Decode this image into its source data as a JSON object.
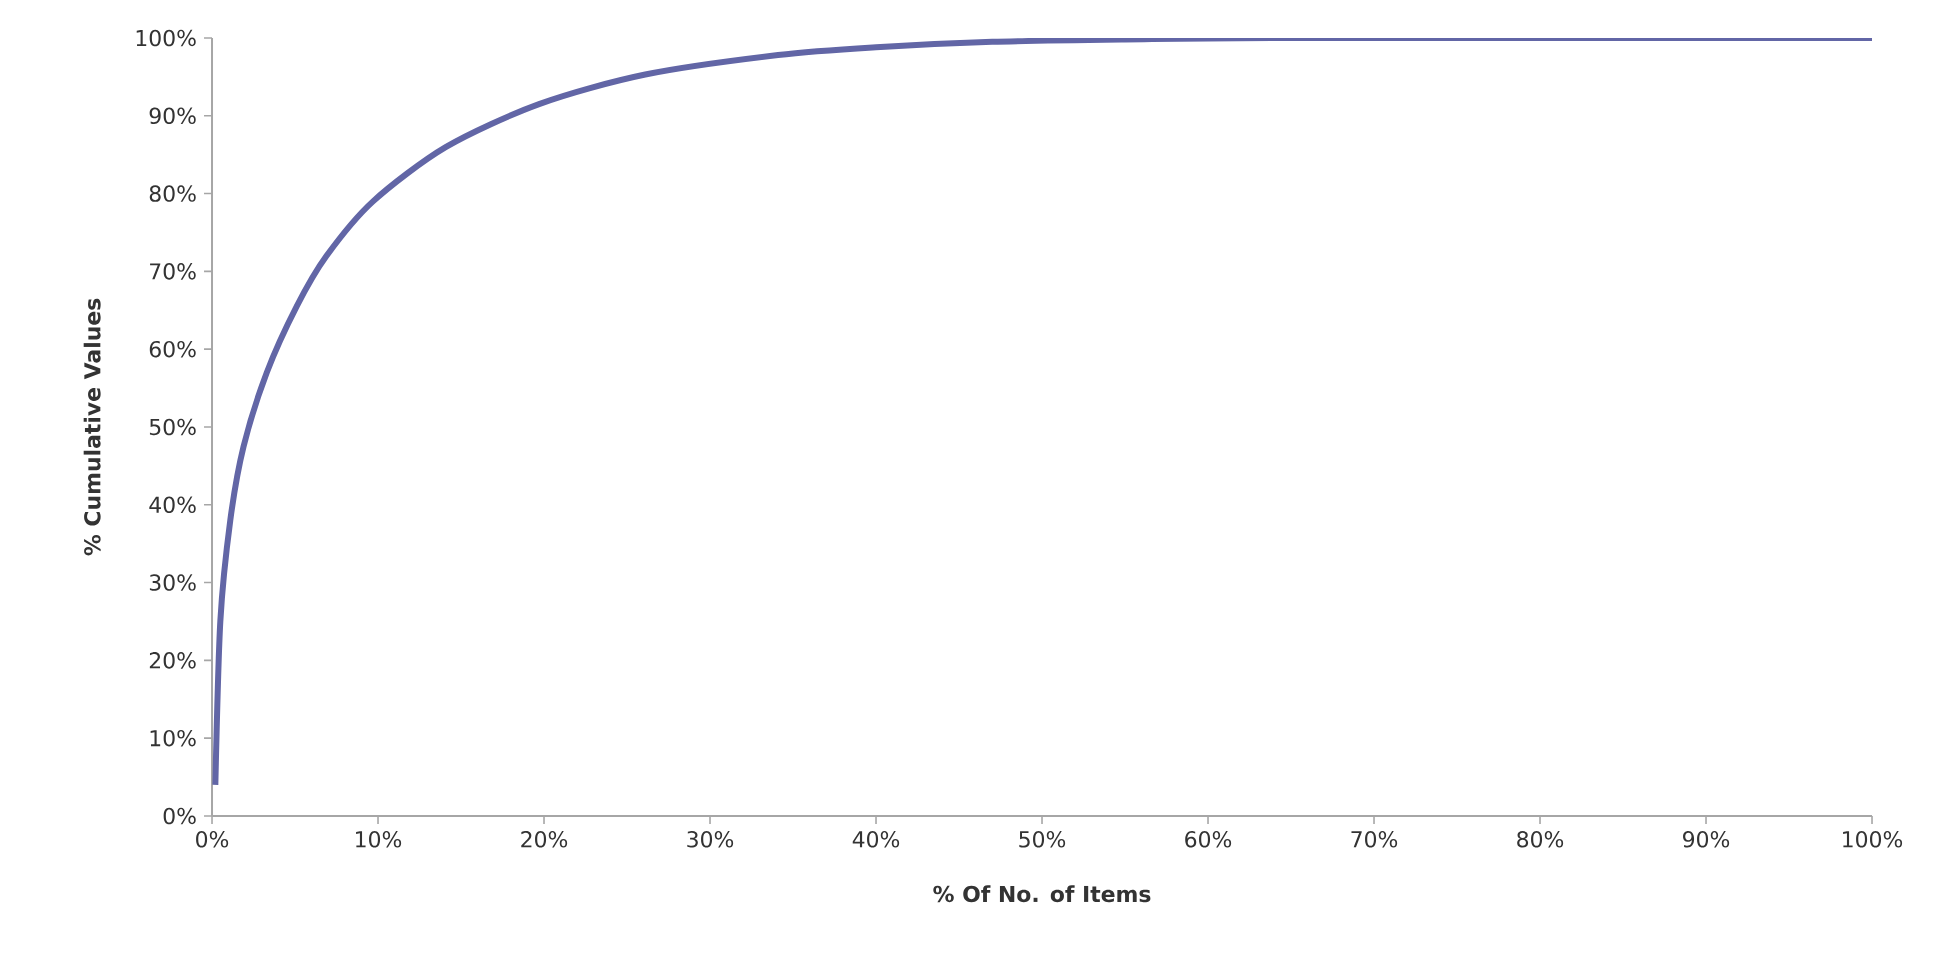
{
  "chart_data": {
    "type": "line",
    "xlabel": "% Of No. of Items",
    "ylabel": "% Cumulative Values",
    "x": [
      0.2,
      0.5,
      1.1,
      1.9,
      3.3,
      5.1,
      6.9,
      9.7,
      14.1,
      19.7,
      26.1,
      34.1,
      40,
      47,
      55,
      65,
      100
    ],
    "series": [
      {
        "color": "#6266a6",
        "values": [
          4,
          25,
          38,
          47.5,
          57,
          65.5,
          72,
          79,
          86,
          91.5,
          95.3,
          97.8,
          98.8,
          99.5,
          99.8,
          100,
          100
        ]
      }
    ],
    "xlim": [
      0,
      100
    ],
    "ylim": [
      0,
      100
    ],
    "xticks": [
      {
        "value": 0,
        "label": "0%"
      },
      {
        "value": 10,
        "label": "10%"
      },
      {
        "value": 20,
        "label": "20%"
      },
      {
        "value": 30,
        "label": "30%"
      },
      {
        "value": 40,
        "label": "40%"
      },
      {
        "value": 50,
        "label": "50%"
      },
      {
        "value": 60,
        "label": "60%"
      },
      {
        "value": 70,
        "label": "70%"
      },
      {
        "value": 80,
        "label": "80%"
      },
      {
        "value": 90,
        "label": "90%"
      },
      {
        "value": 100,
        "label": "100%"
      }
    ],
    "yticks": [
      {
        "value": 0,
        "label": "0%"
      },
      {
        "value": 10,
        "label": "10%"
      },
      {
        "value": 20,
        "label": "20%"
      },
      {
        "value": 30,
        "label": "30%"
      },
      {
        "value": 40,
        "label": "40%"
      },
      {
        "value": 50,
        "label": "50%"
      },
      {
        "value": 60,
        "label": "60%"
      },
      {
        "value": 70,
        "label": "70%"
      },
      {
        "value": 80,
        "label": "80%"
      },
      {
        "value": 90,
        "label": "90%"
      },
      {
        "value": 100,
        "label": "100%"
      }
    ],
    "grid": false,
    "marker": "none",
    "line_style": "solid"
  }
}
